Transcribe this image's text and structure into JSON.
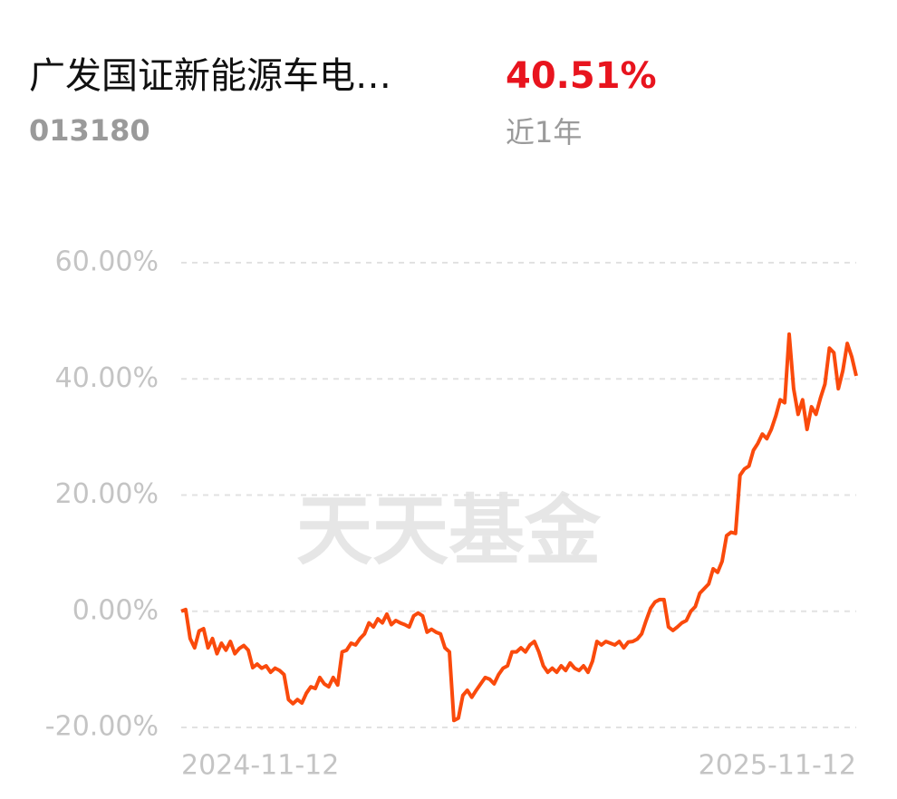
{
  "header": {
    "fund_name": "广发国证新能源车电…",
    "code": "013180",
    "return": "40.51%",
    "period": "近1年"
  },
  "chart_data": {
    "type": "line",
    "watermark": "天天基金",
    "series": [
      {
        "color": "#fa4a0c",
        "values": [
          0,
          0.3,
          -4.7,
          -6.3,
          -3.4,
          -3.0,
          -6.3,
          -4.7,
          -7.3,
          -5.5,
          -6.7,
          -5.2,
          -7.3,
          -6.4,
          -5.9,
          -6.7,
          -9.7,
          -9.1,
          -9.8,
          -9.4,
          -10.5,
          -9.8,
          -10.2,
          -10.9,
          -15.2,
          -15.9,
          -15.2,
          -15.8,
          -14.1,
          -13.0,
          -13.3,
          -11.4,
          -12.5,
          -13.0,
          -11.4,
          -12.7,
          -7.0,
          -6.7,
          -5.5,
          -5.8,
          -4.7,
          -3.9,
          -2.0,
          -2.7,
          -1.3,
          -2.0,
          -0.5,
          -2.3,
          -1.6,
          -2.0,
          -2.3,
          -2.7,
          -0.8,
          -0.3,
          -0.8,
          -3.6,
          -3.1,
          -3.6,
          -3.9,
          -6.3,
          -7.0,
          -18.8,
          -18.4,
          -14.5,
          -13.6,
          -14.8,
          -13.6,
          -12.5,
          -11.4,
          -11.7,
          -12.5,
          -10.9,
          -9.8,
          -9.4,
          -7.0,
          -7.0,
          -6.3,
          -7.0,
          -5.8,
          -5.2,
          -7.0,
          -9.4,
          -10.5,
          -9.8,
          -10.5,
          -9.4,
          -10.2,
          -8.9,
          -9.8,
          -10.2,
          -9.4,
          -10.5,
          -8.6,
          -5.2,
          -5.8,
          -5.2,
          -5.5,
          -5.8,
          -5.2,
          -6.3,
          -5.3,
          -5.2,
          -4.8,
          -3.9,
          -1.6,
          0.5,
          1.6,
          2.0,
          2.0,
          -2.7,
          -3.3,
          -2.7,
          -2.0,
          -1.6,
          0,
          0.8,
          3.1,
          3.9,
          4.7,
          7.3,
          6.7,
          8.6,
          13.0,
          13.6,
          13.4,
          23.4,
          24.5,
          25.0,
          27.7,
          28.9,
          30.5,
          29.7,
          31.3,
          33.6,
          36.4,
          35.9,
          47.7,
          38.3,
          33.9,
          36.4,
          31.3,
          35.2,
          33.9,
          36.7,
          39.1,
          45.3,
          44.5,
          38.3,
          41.4,
          46.1,
          43.8,
          40.51
        ]
      }
    ],
    "xlim": [
      0,
      151
    ],
    "xticks": [
      {
        "value": 0,
        "label": "2024-11-12"
      },
      {
        "value": 151,
        "label": "2025-11-12"
      }
    ],
    "ylim": [
      -20,
      60
    ],
    "yticks": [
      {
        "value": 60,
        "label": "60.00%"
      },
      {
        "value": 40,
        "label": "40.00%"
      },
      {
        "value": 20,
        "label": "20.00%"
      },
      {
        "value": 0,
        "label": "0.00%"
      },
      {
        "value": -20,
        "label": "-20.00%"
      }
    ],
    "grid": true
  }
}
